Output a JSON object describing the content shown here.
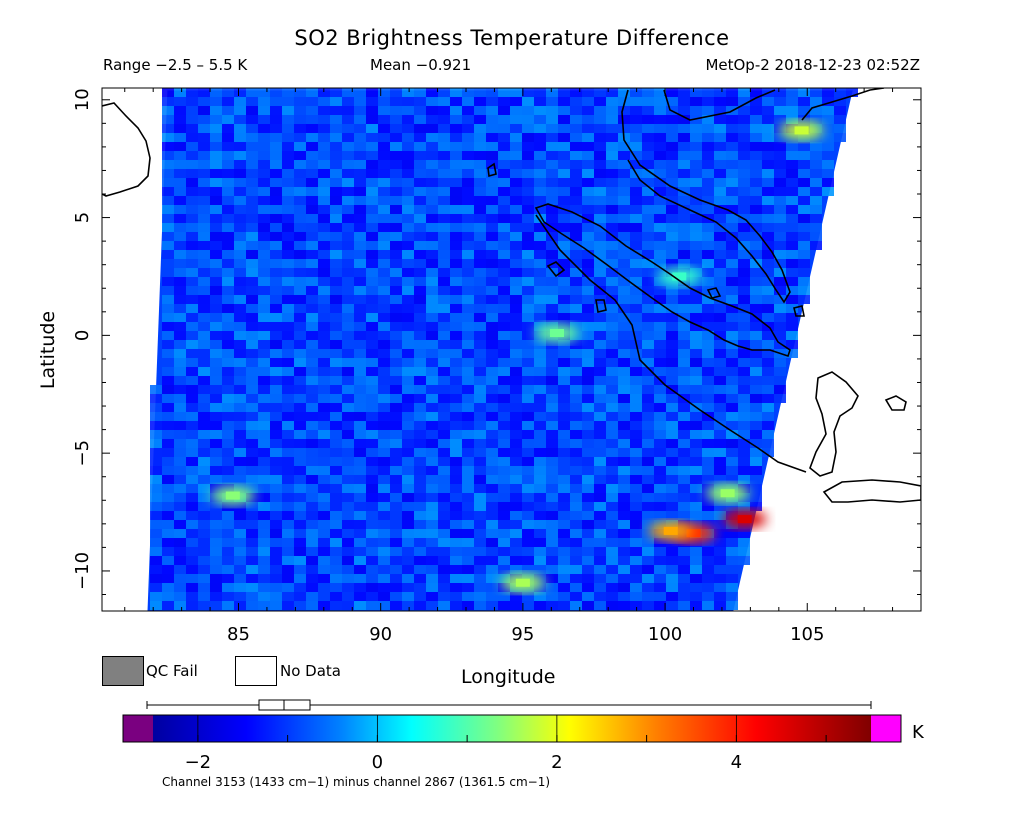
{
  "header": {
    "title": "SO2 Brightness Temperature Difference",
    "range": "Range −2.5 – 5.5 K",
    "mean": "Mean −0.921",
    "satellite_time": "MetOp-2 2018-12-23 02:52Z"
  },
  "legend": {
    "qc_fail_label": "QC Fail",
    "no_data_label": "No Data"
  },
  "colorbar": {
    "unit": "K",
    "ticks": [
      "−2",
      "0",
      "2",
      "4"
    ]
  },
  "footnote": "Channel 3153 (1433 cm−1) minus channel 2867 (1361.5 cm−1)",
  "colors": {
    "qc_fail": "#808080",
    "below_range": "#7a0080",
    "above_range": "#ff00ff",
    "coastline": "#000000"
  },
  "chart_data": {
    "type": "heatmap",
    "title": "SO2 Brightness Temperature Difference",
    "xlabel": "Longitude",
    "ylabel": "Latitude",
    "xlim": [
      80.2,
      109
    ],
    "ylim": [
      -11.7,
      10.5
    ],
    "x_ticks": [
      "85",
      "90",
      "95",
      "100",
      "105"
    ],
    "y_ticks": [
      "10",
      "5",
      "0",
      "−5",
      "−10"
    ],
    "colorbar_range": [
      -2.5,
      5.5
    ],
    "mean": -0.921,
    "swath_corners": {
      "top_left": [
        82.5,
        10.4
      ],
      "top_right": [
        106.6,
        10.4
      ],
      "bottom_right": [
        102.4,
        -11.7
      ],
      "bottom_left": [
        81.8,
        -11.7
      ]
    },
    "features": [
      {
        "lon": 102.8,
        "lat": -7.8,
        "value": 4.6
      },
      {
        "lon": 101.0,
        "lat": -8.4,
        "value": 3.8
      },
      {
        "lon": 100.2,
        "lat": -8.3,
        "value": 2.8
      },
      {
        "lon": 102.2,
        "lat": -6.7,
        "value": 1.5
      },
      {
        "lon": 96.2,
        "lat": 0.1,
        "value": 1.2
      },
      {
        "lon": 95.0,
        "lat": -10.5,
        "value": 1.6
      },
      {
        "lon": 84.8,
        "lat": -6.8,
        "value": 1.4
      },
      {
        "lon": 104.8,
        "lat": 8.7,
        "value": 1.8
      },
      {
        "lon": 100.5,
        "lat": 2.5,
        "value": 0.8
      }
    ]
  }
}
